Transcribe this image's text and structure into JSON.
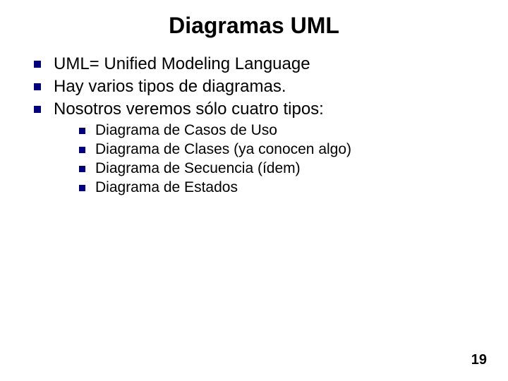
{
  "title": {
    "text": "Diagramas UML",
    "fontsize": 32,
    "fontweight": "bold",
    "color": "#000000"
  },
  "bullets_main": {
    "items": [
      "UML= Unified Modeling Language",
      "Hay varios tipos de diagramas.",
      "Nosotros veremos sólo cuatro tipos:"
    ],
    "fontsize": 24,
    "color": "#000000",
    "bullet_color": "#000080",
    "bullet_size": 10
  },
  "bullets_sub": {
    "items": [
      "Diagrama de Casos de Uso",
      "Diagrama de Clases (ya conocen algo)",
      "Diagrama de Secuencia  (ídem)",
      "Diagrama de Estados"
    ],
    "fontsize": 21,
    "color": "#000000",
    "bullet_color": "#000080",
    "bullet_size": 9
  },
  "page_number": {
    "text": "19",
    "fontsize": 20,
    "color": "#000000"
  },
  "background_color": "#ffffff"
}
